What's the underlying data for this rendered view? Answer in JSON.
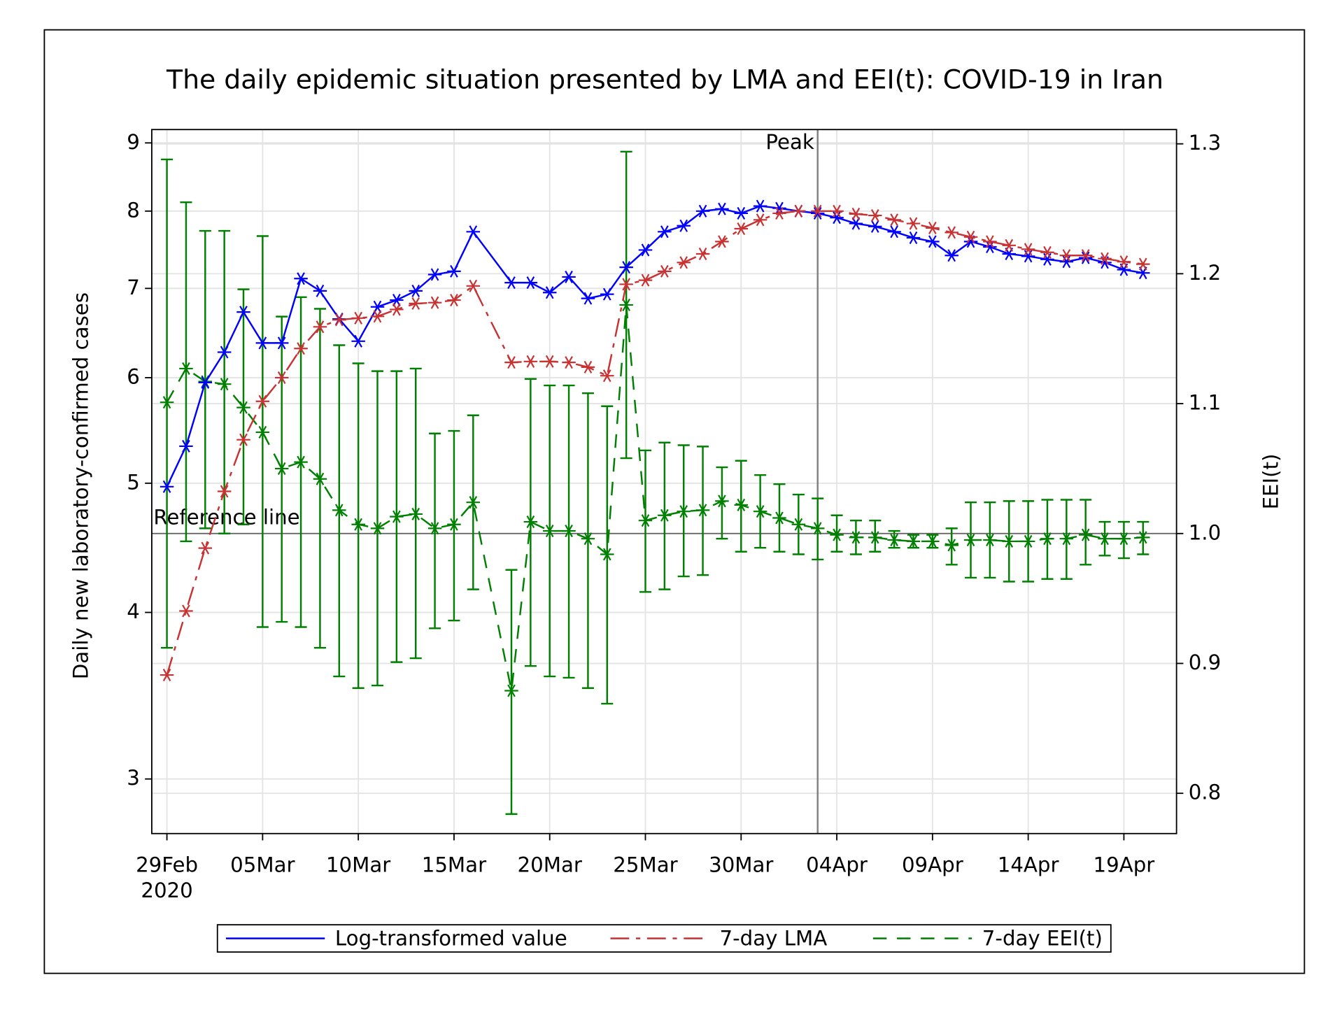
{
  "chart_data": {
    "type": "line",
    "title": "The daily epidemic situation presented by LMA and EEI(t): COVID-19 in Iran",
    "y_label": "Daily new laboratory-confirmed cases",
    "y2_label": "EEI(t)",
    "x": [
      "2020-02-29",
      "2020-03-01",
      "2020-03-02",
      "2020-03-03",
      "2020-03-04",
      "2020-03-05",
      "2020-03-06",
      "2020-03-07",
      "2020-03-08",
      "2020-03-09",
      "2020-03-10",
      "2020-03-11",
      "2020-03-12",
      "2020-03-13",
      "2020-03-14",
      "2020-03-15",
      "2020-03-16",
      "2020-03-18",
      "2020-03-19",
      "2020-03-20",
      "2020-03-21",
      "2020-03-22",
      "2020-03-23",
      "2020-03-24",
      "2020-03-25",
      "2020-03-26",
      "2020-03-27",
      "2020-03-28",
      "2020-03-29",
      "2020-03-30",
      "2020-03-31",
      "2020-04-01",
      "2020-04-02",
      "2020-04-03",
      "2020-04-04",
      "2020-04-05",
      "2020-04-06",
      "2020-04-07",
      "2020-04-08",
      "2020-04-09",
      "2020-04-10",
      "2020-04-11",
      "2020-04-12",
      "2020-04-13",
      "2020-04-14",
      "2020-04-15",
      "2020-04-16",
      "2020-04-17",
      "2020-04-18",
      "2020-04-19",
      "2020-04-20"
    ],
    "series": [
      {
        "name": "Log-transformed value",
        "color": "#0000ff",
        "line_style": "solid",
        "values": [
          4.97,
          5.33,
          5.95,
          6.27,
          6.72,
          6.37,
          6.37,
          7.12,
          6.97,
          6.64,
          6.39,
          6.78,
          6.86,
          6.97,
          7.17,
          7.21,
          7.72,
          7.07,
          7.07,
          6.95,
          7.14,
          6.88,
          6.93,
          7.26,
          7.48,
          7.72,
          7.8,
          8.0,
          8.03,
          7.97,
          8.07,
          8.04,
          8.0,
          7.97,
          7.91,
          7.83,
          7.79,
          7.72,
          7.64,
          7.59,
          7.41,
          7.59,
          7.52,
          7.43,
          7.4,
          7.36,
          7.33,
          7.38,
          7.32,
          7.23,
          7.19
        ]
      },
      {
        "name": "7-day LMA",
        "color": "#c83232",
        "line_style": "dash-dot",
        "values": [
          3.59,
          4.01,
          4.47,
          4.93,
          5.39,
          5.76,
          6.0,
          6.31,
          6.55,
          6.63,
          6.65,
          6.67,
          6.75,
          6.82,
          6.83,
          6.86,
          7.03,
          6.16,
          6.17,
          6.17,
          6.16,
          6.11,
          6.02,
          7.05,
          7.1,
          7.21,
          7.32,
          7.43,
          7.59,
          7.76,
          7.88,
          7.97,
          8.0,
          8.0,
          8.0,
          7.96,
          7.94,
          7.88,
          7.83,
          7.77,
          7.71,
          7.65,
          7.59,
          7.54,
          7.49,
          7.45,
          7.41,
          7.41,
          7.37,
          7.33,
          7.3
        ]
      },
      {
        "name": "7-day EEI(t)",
        "color": "#008000",
        "line_style": "dash",
        "axis": "y2",
        "values": [
          1.101,
          1.127,
          1.117,
          1.115,
          1.097,
          1.078,
          1.05,
          1.055,
          1.042,
          1.018,
          1.007,
          1.004,
          1.013,
          1.015,
          1.004,
          1.007,
          1.024,
          0.879,
          1.009,
          1.002,
          1.002,
          0.996,
          0.984,
          1.176,
          1.01,
          1.014,
          1.017,
          1.018,
          1.025,
          1.022,
          1.017,
          1.012,
          1.007,
          1.004,
          0.999,
          0.997,
          0.997,
          0.995,
          0.994,
          0.994,
          0.991,
          0.995,
          0.995,
          0.994,
          0.994,
          0.996,
          0.996,
          0.999,
          0.996,
          0.996,
          0.997
        ],
        "lower": [
          0.912,
          0.994,
          1.004,
          1.0,
          1.007,
          0.928,
          0.932,
          0.928,
          0.912,
          0.89,
          0.881,
          0.883,
          0.901,
          0.904,
          0.927,
          0.933,
          0.957,
          0.784,
          0.898,
          0.89,
          0.889,
          0.881,
          0.869,
          1.058,
          0.955,
          0.957,
          0.967,
          0.968,
          0.996,
          0.986,
          0.989,
          0.986,
          0.984,
          0.98,
          0.986,
          0.984,
          0.986,
          0.989,
          0.989,
          0.989,
          0.976,
          0.966,
          0.966,
          0.963,
          0.963,
          0.965,
          0.965,
          0.976,
          0.983,
          0.981,
          0.984
        ],
        "upper": [
          1.288,
          1.255,
          1.233,
          1.233,
          1.188,
          1.229,
          1.167,
          1.182,
          1.173,
          1.145,
          1.131,
          1.125,
          1.125,
          1.127,
          1.077,
          1.079,
          1.091,
          0.972,
          1.119,
          1.114,
          1.114,
          1.108,
          1.098,
          1.294,
          1.064,
          1.07,
          1.068,
          1.067,
          1.051,
          1.056,
          1.045,
          1.038,
          1.03,
          1.027,
          1.014,
          1.01,
          1.01,
          1.002,
          0.999,
          0.999,
          1.004,
          1.024,
          1.024,
          1.025,
          1.025,
          1.026,
          1.026,
          1.026,
          1.009,
          1.009,
          1.009
        ]
      }
    ],
    "xlim": [
      "2020-02-28T05:00Z",
      "2020-04-21T18:00Z"
    ],
    "xticks": [
      {
        "value": "2020-02-29",
        "label": "29Feb"
      },
      {
        "value": "2020-03-05",
        "label": "05Mar"
      },
      {
        "value": "2020-03-10",
        "label": "10Mar"
      },
      {
        "value": "2020-03-15",
        "label": "15Mar"
      },
      {
        "value": "2020-03-20",
        "label": "20Mar"
      },
      {
        "value": "2020-03-25",
        "label": "25Mar"
      },
      {
        "value": "2020-03-30",
        "label": "30Mar"
      },
      {
        "value": "2020-04-04",
        "label": "04Apr"
      },
      {
        "value": "2020-04-09",
        "label": "09Apr"
      },
      {
        "value": "2020-04-14",
        "label": "14Apr"
      },
      {
        "value": "2020-04-19",
        "label": "19Apr"
      }
    ],
    "xtick_year": "2020",
    "ylim": [
      2.73,
      9.21
    ],
    "ylog": true,
    "yticks": [
      3,
      4,
      5,
      6,
      7,
      8,
      9
    ],
    "y2lim": [
      0.769,
      1.311
    ],
    "y2ticks": [
      0.8,
      0.9,
      {
        "value": 1,
        "label": "1.0"
      },
      1.1,
      1.2,
      1.3
    ],
    "grid": true,
    "legend": "bottom",
    "annotations": [
      {
        "type": "vline",
        "x": "2020-04-03",
        "label": "Peak",
        "color": "#808080"
      },
      {
        "type": "hline",
        "axis": "y2",
        "y": 1,
        "label": "Reference line",
        "color": "#606060"
      }
    ]
  }
}
